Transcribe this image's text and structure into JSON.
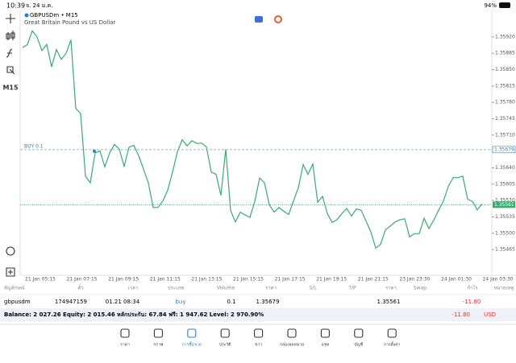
{
  "status_bar": {
    "time": "10:39",
    "date": "จ. 24 ม.ค.",
    "battery": "94%"
  },
  "sidebar": {
    "timeframe": "M15"
  },
  "chart": {
    "type": "line",
    "symbol": "GBPUSDm • M15",
    "description": "Great Britain Pound vs US Dollar",
    "color": "#3aaa6e",
    "order_label": "BUY 0.1",
    "buy_price": 1.35679,
    "bid": 1.35561,
    "ylim": [
      1.3541,
      1.35975
    ],
    "yticks": [
      {
        "value": 1.3592,
        "label": "1.35920"
      },
      1.35885,
      {
        "value": 1.3585,
        "label": "1.35850"
      },
      1.35815,
      {
        "value": 1.3578,
        "label": "1.35780"
      },
      1.35745,
      {
        "value": 1.3571,
        "label": "1.35710"
      },
      {
        "value": 1.3564,
        "label": "1.35640"
      },
      1.35605,
      {
        "value": 1.3557,
        "label": "1.35570"
      },
      1.35535,
      {
        "value": 1.355,
        "label": "1.35500"
      },
      1.35465
    ],
    "xlabels": [
      "21 Jan 05:15",
      "21 Jan 07:15",
      "21 Jan 09:15",
      "21 Jan 11:15",
      "21 Jan 13:15",
      "21 Jan 15:15",
      "21 Jan 17:15",
      "21 Jan 19:15",
      "21 Jan 21:15",
      "23 Jan 23:30",
      "24 Jan 01:30",
      "24 Jan 03:30"
    ],
    "values": [
      1.35897,
      1.35904,
      1.35933,
      1.3592,
      1.35891,
      1.35904,
      1.35856,
      1.35893,
      1.35872,
      1.35885,
      1.35914,
      1.35767,
      1.35756,
      1.35622,
      1.35608,
      1.35672,
      1.35676,
      1.35642,
      1.35672,
      1.3569,
      1.3568,
      1.35643,
      1.35684,
      1.35688,
      1.35666,
      1.35637,
      1.35608,
      1.35555,
      1.35555,
      1.35569,
      1.35592,
      1.35631,
      1.35674,
      1.357,
      1.35687,
      1.35698,
      1.35692,
      1.35693,
      1.35685,
      1.35631,
      1.35626,
      1.35581,
      1.3568,
      1.35549,
      1.35524,
      1.35545,
      1.35539,
      1.35534,
      1.35568,
      1.35618,
      1.35608,
      1.35561,
      1.35545,
      1.35555,
      1.35547,
      1.3554,
      1.35569,
      1.35597,
      1.35647,
      1.35626,
      1.35648,
      1.35566,
      1.35579,
      1.35542,
      1.35523,
      1.35529,
      1.35542,
      1.35553,
      1.35537,
      1.35552,
      1.35549,
      1.35526,
      1.35503,
      1.35468,
      1.35476,
      1.35507,
      1.35515,
      1.35524,
      1.35529,
      1.35531,
      1.35492,
      1.35499,
      1.35499,
      1.35532,
      1.3551,
      1.35528,
      1.35549,
      1.35569,
      1.356,
      1.35619,
      1.35619,
      1.35622,
      1.35573,
      1.35568,
      1.3555,
      1.35563
    ]
  },
  "table": {
    "headers": [
      "สัญลักษณ์",
      "ตั๋ว",
      "เวลา",
      "ประเภท",
      "Volume",
      "ราคา",
      "S/L",
      "T/P",
      "ราคา",
      "Swap",
      "กำไร",
      "หมายเหตุ"
    ],
    "row": {
      "symbol": "gbpusdm",
      "ticket": "174947159",
      "time": "01.21 08:34",
      "type": "buy",
      "volume": "0.1",
      "open_price": "1.35679",
      "price": "1.35561",
      "profit": "-11.80"
    },
    "summary": {
      "text": "Balance: 2 027.26 Equity: 2 015.46 หลักประกัน: 67.84 ฟรี: 1 947.62 Level: 2 970.90%",
      "profit": "-11.80",
      "currency": "USD"
    }
  },
  "nav": {
    "items": [
      "ราคา",
      "กราฟ",
      "การซื้อขาย",
      "ประวัติ",
      "ข่าว",
      "กล่องจดหมาย",
      "แชท",
      "บัญชี",
      "การตั้งค่า"
    ],
    "active": 2
  }
}
